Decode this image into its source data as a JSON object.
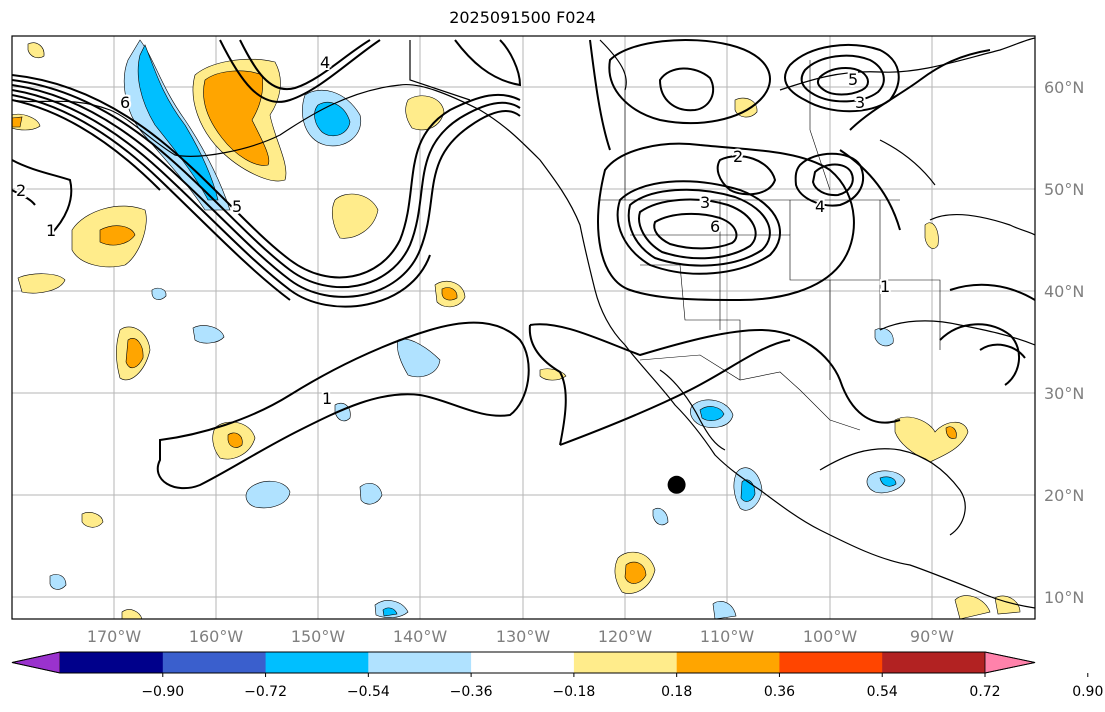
{
  "title": "2025091500 F024",
  "map": {
    "lon_labels": [
      "170°W",
      "160°W",
      "150°W",
      "140°W",
      "130°W",
      "120°W",
      "110°W",
      "100°W",
      "90°W"
    ],
    "lat_labels": [
      "60°N",
      "50°N",
      "40°N",
      "30°N",
      "20°N",
      "10°N"
    ],
    "contour_labels": [
      "1",
      "1",
      "2",
      "2",
      "3",
      "3",
      "4",
      "4",
      "5",
      "5",
      "6",
      "6",
      "1"
    ],
    "marker": {
      "name": "storm-center-dot",
      "lon": -115,
      "lat": 21
    }
  },
  "colorbar": {
    "ticks": [
      "−0.90",
      "−0.72",
      "−0.54",
      "−0.36",
      "−0.18",
      "0.18",
      "0.36",
      "0.54",
      "0.72",
      "0.90"
    ],
    "colors": [
      "#9a32cd",
      "#00008b",
      "#3a5fcd",
      "#00bfff",
      "#b0e2ff",
      "#ffffff",
      "#ffec8b",
      "#ffa500",
      "#ff4500",
      "#b22222",
      "#ff82ab"
    ]
  }
}
